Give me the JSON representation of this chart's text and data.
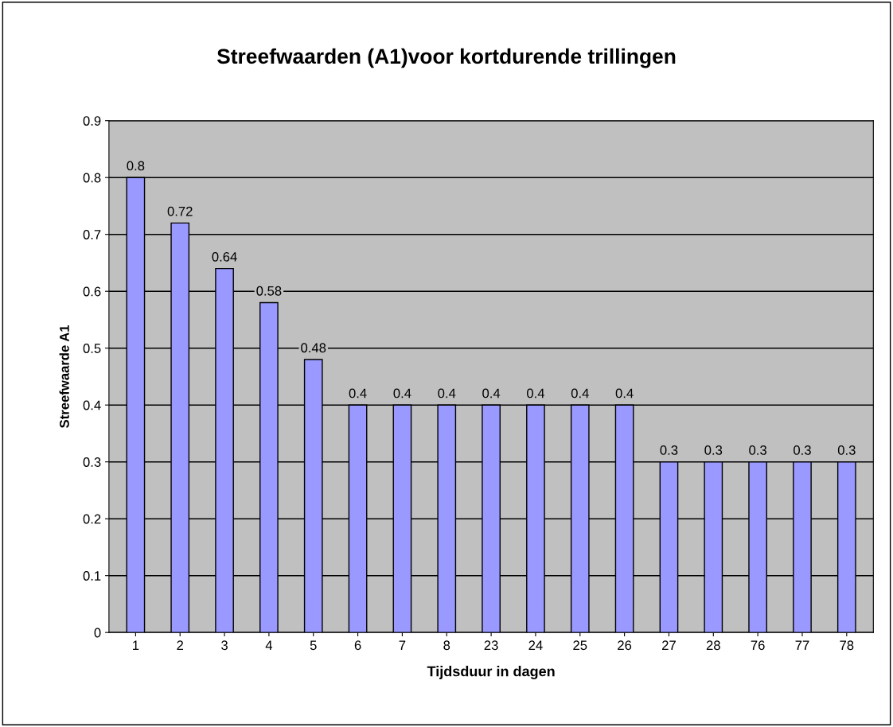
{
  "chart_data": {
    "type": "bar",
    "title": "Streefwaarden (A1)voor kortdurende trillingen",
    "xlabel": "Tijdsduur in dagen",
    "ylabel": "Streefwaarde A1",
    "categories": [
      "1",
      "2",
      "3",
      "4",
      "5",
      "6",
      "7",
      "8",
      "23",
      "24",
      "25",
      "26",
      "27",
      "28",
      "76",
      "77",
      "78"
    ],
    "values": [
      0.8,
      0.72,
      0.64,
      0.58,
      0.48,
      0.4,
      0.4,
      0.4,
      0.4,
      0.4,
      0.4,
      0.4,
      0.3,
      0.3,
      0.3,
      0.3,
      0.3
    ],
    "color": "#9999ff",
    "ylim": [
      0,
      0.9
    ],
    "yticks": [
      0,
      0.1,
      0.2,
      0.3,
      0.4,
      0.5,
      0.6,
      0.7,
      0.8,
      0.9
    ],
    "grid": "y",
    "data_labels": true
  }
}
